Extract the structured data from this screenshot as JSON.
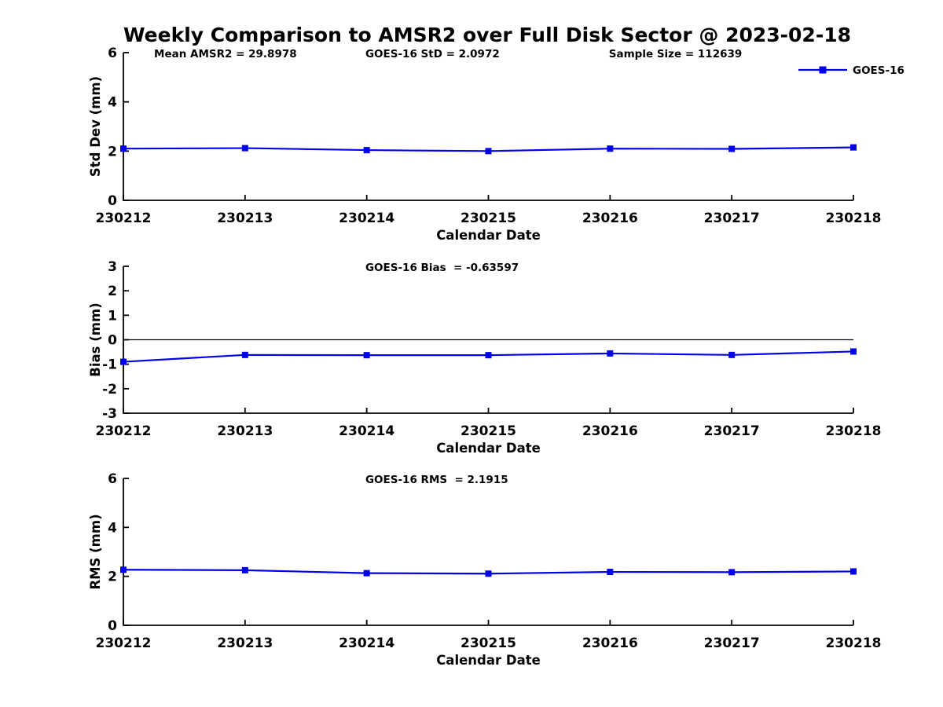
{
  "figure": {
    "title": "Weekly Comparison to AMSR2 over Full Disk Sector @ 2023-02-18",
    "background_color": "#ffffff",
    "line_color": "#0000ED",
    "axis_color": "#000000",
    "text_color": "#000000"
  },
  "chart_data": [
    {
      "id": "stddev",
      "type": "line",
      "categories": [
        "230212",
        "230213",
        "230214",
        "230215",
        "230216",
        "230217",
        "230218"
      ],
      "series": [
        {
          "name": "GOES-16",
          "values": [
            2.1,
            2.12,
            2.04,
            2.0,
            2.1,
            2.09,
            2.15
          ]
        }
      ],
      "xlabel": "Calendar Date",
      "ylabel": "Std Dev (mm)",
      "ylim": [
        0,
        6
      ],
      "yticks": [
        0,
        2,
        4,
        6
      ],
      "grid": false,
      "zero_line": false,
      "annotations": [
        {
          "text": "Mean AMSR2 = 29.8978",
          "xfrac": 0.042
        },
        {
          "text": "GOES-16 StD = 2.0972",
          "xfrac": 0.3315
        },
        {
          "text": "Sample Size = 112639",
          "xfrac": 0.665
        }
      ],
      "legend": {
        "label": "GOES-16",
        "position": "top-right"
      }
    },
    {
      "id": "bias",
      "type": "line",
      "categories": [
        "230212",
        "230213",
        "230214",
        "230215",
        "230216",
        "230217",
        "230218"
      ],
      "series": [
        {
          "name": "GOES-16",
          "values": [
            -0.9,
            -0.62,
            -0.63,
            -0.63,
            -0.56,
            -0.62,
            -0.48
          ]
        }
      ],
      "xlabel": "Calendar Date",
      "ylabel": "Bias (mm)",
      "ylim": [
        -3,
        3
      ],
      "yticks": [
        -3,
        -2,
        -1,
        0,
        1,
        2,
        3
      ],
      "grid": false,
      "zero_line": true,
      "annotations": [
        {
          "text": "GOES-16 Bias  = -0.63597",
          "xfrac": 0.3315
        }
      ],
      "legend": null
    },
    {
      "id": "rms",
      "type": "line",
      "categories": [
        "230212",
        "230213",
        "230214",
        "230215",
        "230216",
        "230217",
        "230218"
      ],
      "series": [
        {
          "name": "GOES-16",
          "values": [
            2.27,
            2.25,
            2.13,
            2.11,
            2.18,
            2.17,
            2.2
          ]
        }
      ],
      "xlabel": "Calendar Date",
      "ylabel": "RMS (mm)",
      "ylim": [
        0,
        6
      ],
      "yticks": [
        0,
        2,
        4,
        6
      ],
      "grid": false,
      "zero_line": false,
      "annotations": [
        {
          "text": "GOES-16 RMS  = 2.1915",
          "xfrac": 0.3315
        }
      ],
      "legend": null
    }
  ]
}
